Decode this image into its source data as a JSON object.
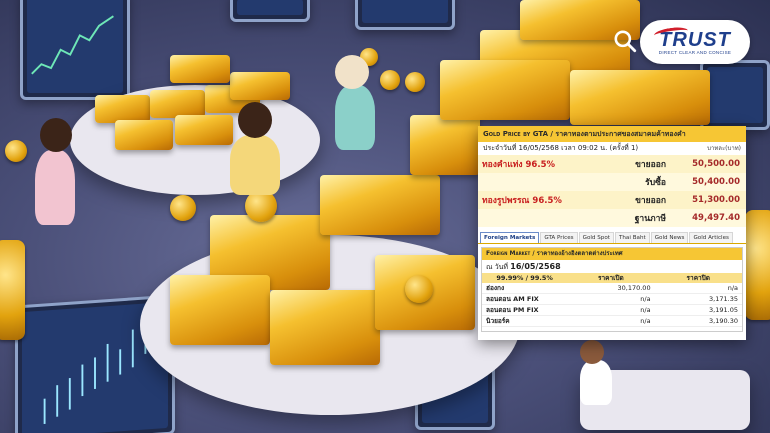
{
  "brand": {
    "logo_text": "TRUST",
    "logo_tagline": "DIRECT CLEAR AND CONCISE"
  },
  "search": {
    "icon": "search-icon"
  },
  "gold_price": {
    "header_prefix": "Gold Price by GTA",
    "header_suffix": " / ราคาทองตามประกาศของสมาคมค้าทองคำ",
    "date_line": "ประจำวันที่ 16/05/2568 เวลา 09:02 น. (ครั้งที่ 1)",
    "unit": "บาทละ(บาท)",
    "rows": [
      {
        "name": "ทองคำแท่ง 96.5%",
        "label": "ขายออก",
        "value": "50,500.00"
      },
      {
        "name": "",
        "label": "รับซื้อ",
        "value": "50,400.00"
      },
      {
        "name": "ทองรูปพรรณ 96.5%",
        "label": "ขายออก",
        "value": "51,300.00"
      },
      {
        "name": "",
        "label": "ฐานภาษี",
        "value": "49,497.40"
      }
    ]
  },
  "tabs": [
    {
      "label": "Foreign Markets",
      "active": true
    },
    {
      "label": "GTA Prices",
      "active": false
    },
    {
      "label": "Gold Spot",
      "active": false
    },
    {
      "label": "Thai Baht",
      "active": false
    },
    {
      "label": "Gold News",
      "active": false
    },
    {
      "label": "Gold Articles",
      "active": false
    }
  ],
  "foreign_market": {
    "header_prefix": "Foreign Market",
    "header_suffix": " / ราคาทองอ้างอิงตลาดต่างประเทศ",
    "date_label": "ณ วันที่",
    "date": "16/05/2568",
    "columns": [
      "99.99% / 99.5%",
      "ราคาเปิด",
      "ราคาปิด"
    ],
    "rows": [
      {
        "name": "ฮ่องกง",
        "open": "30,170.00",
        "close": "n/a"
      },
      {
        "name": "ลอนดอน AM FIX",
        "open": "n/a",
        "close": "3,171.35"
      },
      {
        "name": "ลอนดอน PM FIX",
        "open": "n/a",
        "close": "3,191.05"
      },
      {
        "name": "นิวยอร์ค",
        "open": "n/a",
        "close": "3,190.30"
      }
    ]
  },
  "colors": {
    "accent_gold": "#f6c634",
    "price_red": "#c81e1e",
    "brand_blue": "#1f3f8c",
    "brand_red": "#d11f2b"
  }
}
